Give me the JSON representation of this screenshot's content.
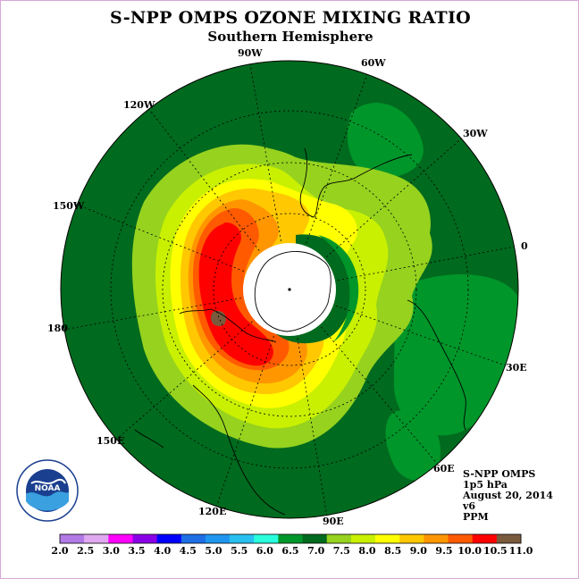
{
  "title": "S-NPP OMPS OZONE MIXING RATIO",
  "subtitle": "Southern Hemisphere",
  "longitude_labels": [
    "90W",
    "60W",
    "120W",
    "30W",
    "150W",
    "0",
    "180",
    "30E",
    "150E",
    "60E",
    "120E",
    "90E"
  ],
  "info": {
    "instrument": "S-NPP OMPS",
    "level": "1p5 hPa",
    "date": "August 20, 2014",
    "version": "v6",
    "units": "PPM"
  },
  "logo": {
    "text": "NOAA"
  },
  "colorbar": {
    "ticks": [
      "2.0",
      "2.5",
      "3.0",
      "3.5",
      "4.0",
      "4.5",
      "5.0",
      "5.5",
      "6.0",
      "6.5",
      "7.0",
      "7.5",
      "8.0",
      "8.5",
      "9.0",
      "9.5",
      "10.0",
      "10.5",
      "11.0"
    ],
    "colors": [
      "#b27ae6",
      "#e0a8f0",
      "#ff00ff",
      "#8a00e6",
      "#0000ff",
      "#1e6ee6",
      "#1e96f0",
      "#28c0f0",
      "#28ffdc",
      "#00962a",
      "#006a1e",
      "#96d21e",
      "#c8f000",
      "#ffff00",
      "#ffc800",
      "#ff9600",
      "#ff5a00",
      "#ff0000",
      "#7a5a3c"
    ]
  },
  "map_colors": {
    "dark_green": "#006a1e",
    "green": "#00962a",
    "light_green": "#96d21e",
    "yellow_green": "#c8f000",
    "yellow": "#ffff00",
    "gold": "#ffc800",
    "orange": "#ff9600",
    "dark_orange": "#ff5a00",
    "red": "#ff0000",
    "brown": "#7a5a3c"
  }
}
